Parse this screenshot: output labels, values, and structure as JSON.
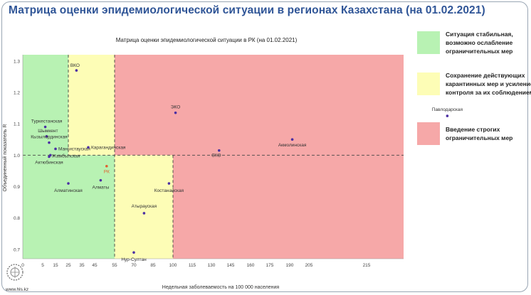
{
  "slide": {
    "title": "Матрица оценки эпидемиологической ситуации в регионах Казахстана (на 01.02.2021)",
    "logo_url": "www.hls.kz"
  },
  "legend": [
    {
      "color": "#b8f2b3",
      "label": "Ситуация стабильная, возможно ослабление ограничительных мер"
    },
    {
      "color": "#fdfdb6",
      "label": "Сохранение действующих карантинных мер и усиление контроля за их соблюдением"
    },
    {
      "color": "#f6a8a8",
      "label": "Введение строгих ограничительных мер"
    }
  ],
  "chart_data": {
    "type": "scatter",
    "title": "Матрица оценки эпидемиологической ситуации в РК (на 01.02.2021)",
    "xlabel": "Недельная заболеваемость на 100 000 населения",
    "ylabel": "Объединенный показатель R",
    "x_ticks": [
      0,
      5,
      15,
      25,
      35,
      45,
      55,
      70,
      85,
      100,
      115,
      130,
      145,
      160,
      175,
      190,
      205,
      215
    ],
    "y_ticks": [
      0.7,
      0.8,
      0.9,
      1.0,
      1.1,
      1.2,
      1.3
    ],
    "ylim": [
      0.67,
      1.32
    ],
    "threshold_r": 1.0,
    "zones": [
      {
        "color": "#b8f2b3"
      },
      {
        "color": "#fdfdb6"
      },
      {
        "color": "#f6a8a8"
      }
    ],
    "points": [
      {
        "label": "ВКО",
        "x": 31,
        "y": 1.27
      },
      {
        "label": "ЭКО",
        "x": 102,
        "y": 1.135
      },
      {
        "label": "Павлодарская",
        "x": 229,
        "y": 1.125
      },
      {
        "label": "Туркестанская",
        "x": 7,
        "y": 1.09
      },
      {
        "label": "Шымкент",
        "x": 8,
        "y": 1.06
      },
      {
        "label": "Кызылординская",
        "x": 10,
        "y": 1.04
      },
      {
        "label": "Мангистауская",
        "x": 15,
        "y": 1.02
      },
      {
        "label": "Карагандинская",
        "x": 40,
        "y": 1.025
      },
      {
        "label": "Жамбылская",
        "x": 11,
        "y": 1.0
      },
      {
        "label": "Актюбинская",
        "x": 10,
        "y": 0.995
      },
      {
        "label": "Акмолинская",
        "x": 192,
        "y": 1.05
      },
      {
        "label": "СКО",
        "x": 136,
        "y": 1.015
      },
      {
        "label": "РК",
        "x": 51,
        "y": 0.965
      },
      {
        "label": "Алматинская",
        "x": 25,
        "y": 0.91
      },
      {
        "label": "Алматы",
        "x": 48,
        "y": 0.92
      },
      {
        "label": "Костанайская",
        "x": 97,
        "y": 0.91
      },
      {
        "label": "Атырауская",
        "x": 78,
        "y": 0.815
      },
      {
        "label": "Нур-Султан",
        "x": 70,
        "y": 0.69
      }
    ]
  }
}
